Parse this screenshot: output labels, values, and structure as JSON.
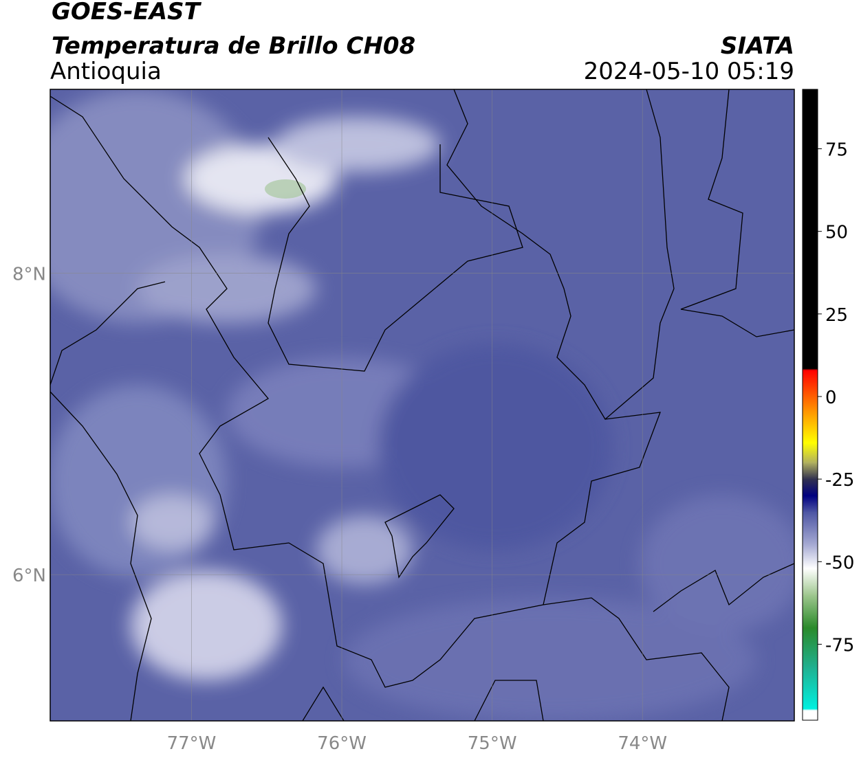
{
  "header": {
    "title": "GOES-EAST",
    "subtitle": "Temperatura de Brillo CH08",
    "region": "Antioquia",
    "source": "SIATA",
    "datetime": "2024-05-10 05:19"
  },
  "map": {
    "xlim": [
      -77.94,
      -72.99
    ],
    "ylim": [
      5.03,
      9.22
    ],
    "xticks": [
      {
        "value": -77,
        "label": "77°W"
      },
      {
        "value": -76,
        "label": "76°W"
      },
      {
        "value": -75,
        "label": "75°W"
      },
      {
        "value": -74,
        "label": "74°W"
      }
    ],
    "yticks": [
      {
        "value": 8,
        "label": "8°N"
      },
      {
        "value": 6,
        "label": "6°N"
      }
    ],
    "grid": true
  },
  "colorbar": {
    "lim": [
      -98,
      93
    ],
    "ticks": [
      75,
      50,
      25,
      0,
      -25,
      -50,
      -75
    ],
    "stops": [
      {
        "value": -98,
        "color": "#ffffff"
      },
      {
        "value": -95,
        "color": "#ffffff"
      },
      {
        "value": -94.5,
        "color": "#00f0e0"
      },
      {
        "value": -82,
        "color": "#20b090"
      },
      {
        "value": -70,
        "color": "#2a8a2a"
      },
      {
        "value": -60,
        "color": "#a0c890"
      },
      {
        "value": -52,
        "color": "#ffffff"
      },
      {
        "value": -45,
        "color": "#a8acd4"
      },
      {
        "value": -35,
        "color": "#4e56a4"
      },
      {
        "value": -30,
        "color": "#000080"
      },
      {
        "value": -25,
        "color": "#303050"
      },
      {
        "value": -20,
        "color": "#b0b060"
      },
      {
        "value": -14,
        "color": "#ffff00"
      },
      {
        "value": -4,
        "color": "#ff9000"
      },
      {
        "value": 8,
        "color": "#ff0000"
      },
      {
        "value": 8.5,
        "color": "#000000"
      },
      {
        "value": 93,
        "color": "#000000"
      }
    ]
  }
}
